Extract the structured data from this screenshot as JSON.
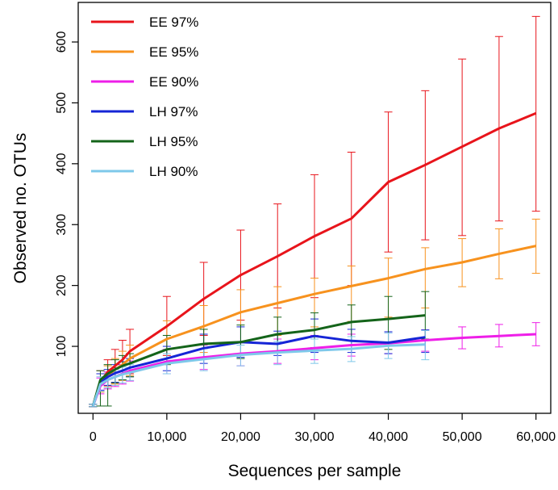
{
  "chart_data": {
    "type": "line",
    "title": "",
    "xlabel": "Sequences per sample",
    "ylabel": "Observed no. OTUs",
    "xlim": [
      -2000,
      62000
    ],
    "ylim": [
      -10,
      665
    ],
    "x_ticks": [
      0,
      10000,
      20000,
      30000,
      40000,
      50000,
      60000
    ],
    "x_tick_labels": [
      "0",
      "10,000",
      "20,000",
      "30,000",
      "40,000",
      "50,000",
      "60,000"
    ],
    "y_ticks": [
      100,
      200,
      300,
      400,
      500,
      600
    ],
    "y_tick_labels": [
      "100",
      "200",
      "300",
      "400",
      "500",
      "600"
    ],
    "grid": false,
    "legend_position": "top-left",
    "series": [
      {
        "name": "EE 97%",
        "color": "#e8141b",
        "x": [
          0,
          1000,
          2000,
          3000,
          4000,
          5000,
          10000,
          15000,
          20000,
          25000,
          30000,
          35000,
          40000,
          45000,
          50000,
          55000,
          60000
        ],
        "y": [
          2,
          42,
          58,
          68,
          78,
          92,
          133,
          178,
          217,
          248,
          281,
          310,
          370,
          398,
          428,
          458,
          483
        ],
        "err_low": [
          1,
          25,
          35,
          40,
          45,
          55,
          85,
          118,
          143,
          163,
          180,
          200,
          255,
          275,
          282,
          306,
          322
        ],
        "err_high": [
          5,
          60,
          78,
          95,
          110,
          128,
          182,
          238,
          291,
          334,
          382,
          419,
          485,
          520,
          572,
          609,
          642
        ]
      },
      {
        "name": "EE 95%",
        "color": "#f7921e",
        "x": [
          0,
          1000,
          2000,
          3000,
          4000,
          5000,
          10000,
          15000,
          20000,
          25000,
          30000,
          35000,
          40000,
          45000,
          50000,
          55000,
          60000
        ],
        "y": [
          2,
          40,
          52,
          62,
          70,
          80,
          112,
          133,
          156,
          171,
          186,
          199,
          212,
          227,
          238,
          252,
          265
        ],
        "err_low": [
          1,
          25,
          32,
          38,
          44,
          52,
          72,
          90,
          106,
          118,
          132,
          141,
          148,
          163,
          198,
          211,
          220
        ],
        "err_high": [
          5,
          55,
          68,
          80,
          92,
          102,
          142,
          167,
          193,
          198,
          212,
          232,
          245,
          262,
          277,
          293,
          309
        ]
      },
      {
        "name": "EE 90%",
        "color": "#ee1ee8",
        "x": [
          0,
          1000,
          2000,
          3000,
          4000,
          5000,
          10000,
          15000,
          20000,
          25000,
          30000,
          35000,
          40000,
          45000,
          50000,
          55000,
          60000
        ],
        "y": [
          2,
          35,
          45,
          50,
          55,
          60,
          75,
          82,
          88,
          92,
          97,
          102,
          105,
          110,
          114,
          117,
          120
        ],
        "err_low": [
          1,
          22,
          30,
          34,
          38,
          43,
          55,
          62,
          68,
          72,
          78,
          84,
          88,
          92,
          96,
          99,
          101
        ],
        "err_high": [
          5,
          48,
          58,
          65,
          70,
          76,
          95,
          102,
          108,
          112,
          118,
          120,
          122,
          127,
          132,
          136,
          139
        ]
      },
      {
        "name": "LH 97%",
        "color": "#1525d6",
        "x": [
          0,
          1000,
          2000,
          3000,
          4000,
          5000,
          10000,
          15000,
          20000,
          25000,
          30000,
          35000,
          40000,
          45000
        ],
        "y": [
          2,
          40,
          50,
          56,
          60,
          65,
          80,
          97,
          107,
          104,
          117,
          109,
          106,
          115
        ],
        "err_low": [
          1,
          28,
          36,
          41,
          45,
          50,
          60,
          72,
          82,
          85,
          90,
          90,
          88,
          90
        ],
        "err_high": [
          5,
          55,
          62,
          70,
          75,
          80,
          100,
          120,
          132,
          125,
          145,
          128,
          124,
          127
        ]
      },
      {
        "name": "LH 95%",
        "color": "#14641a",
        "x": [
          0,
          1000,
          2000,
          3000,
          4000,
          5000,
          10000,
          15000,
          20000,
          25000,
          30000,
          35000,
          40000,
          45000
        ],
        "y": [
          2,
          45,
          55,
          62,
          68,
          72,
          95,
          104,
          107,
          120,
          127,
          140,
          145,
          151
        ],
        "err_low": [
          1,
          2,
          2,
          40,
          45,
          50,
          70,
          80,
          80,
          92,
          98,
          102,
          95,
          112
        ],
        "err_high": [
          5,
          60,
          70,
          78,
          85,
          88,
          118,
          128,
          135,
          148,
          155,
          168,
          182,
          190
        ]
      },
      {
        "name": "LH 90%",
        "color": "#7ec8ea",
        "x": [
          0,
          1000,
          2000,
          3000,
          4000,
          5000,
          10000,
          15000,
          20000,
          25000,
          30000,
          35000,
          40000,
          45000
        ],
        "y": [
          2,
          38,
          45,
          50,
          54,
          57,
          72,
          79,
          86,
          90,
          93,
          96,
          101,
          103
        ],
        "err_low": [
          1,
          26,
          32,
          36,
          40,
          44,
          55,
          60,
          68,
          70,
          72,
          75,
          80,
          78
        ],
        "err_high": [
          5,
          50,
          56,
          62,
          66,
          70,
          88,
          96,
          102,
          108,
          112,
          116,
          122,
          126
        ]
      }
    ]
  }
}
